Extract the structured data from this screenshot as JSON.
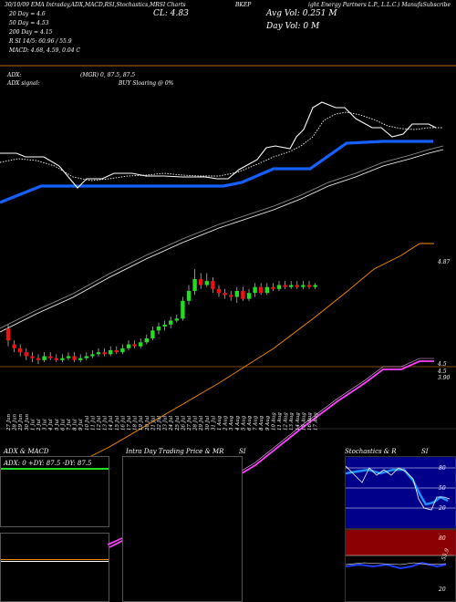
{
  "header": {
    "left_title": "30/10/09 EMA Intraday,ADX,MACD,RSI,Stochastics,MRSI Charts",
    "symbol": "BKEP",
    "right_title": "ight Energy Partners L.P., L.L.C.) ManufaSubscribe",
    "ma20": "20 Day = 4.6",
    "ma50": "50 Day = 4.53",
    "ma200": "200 Day = 4.15",
    "rsi_line": "R                    SI 14/5: 60.96 / 55.9",
    "macd_line": "MACD: 4.68, 4.59, 0.04  C",
    "cl": "CL: 4.83",
    "avg_vol": "Avg Vol: 0.251  M",
    "day_vol": "Day Vol: 0   M"
  },
  "adx_strip": {
    "adx": "ADX:",
    "mgr": "(MGR) 0, 87.5, 87.5",
    "signal": "ADX  signal:",
    "buy": "BUY Sloaring @ 0%"
  },
  "price_axis": {
    "label_top": "4.87",
    "label_mid1": "4.5",
    "label_mid2": "4.5",
    "label_low": "3.90"
  },
  "panels": {
    "adx_title": "ADX  & MACD",
    "adx_values": "ADX: 0   +DY: 87.5  -DY: 87.5",
    "intra_title": "Intra  Day Trading Price  & MR",
    "intra_si": "SI",
    "stoch_title": "Stochastics & R",
    "stoch_si": "SI",
    "stoch_ticks": [
      "80",
      "50",
      "20"
    ],
    "rsi_ticks": [
      "80",
      "50",
      "20"
    ],
    "rsi_mid": "55.9"
  },
  "colors": {
    "background": "#000000",
    "blue": "#1560ff",
    "orange": "#ff8c00",
    "magenta": "#ff40ff",
    "up": "#22dd22",
    "down": "#ee1111",
    "panel_red": "#8b0000",
    "panel_blue": "#00008b"
  },
  "chart_data": {
    "type": "candlestick",
    "categories": [
      "27 Jun",
      "28 Jun",
      "29 Jun",
      "30 Jun",
      "1 Jul",
      "2 Jul",
      "3 Jul",
      "4 Jul",
      "5 Jul",
      "6 Jul",
      "7 Jul",
      "8 Jul",
      "9 Jul",
      "10 Jul",
      "11 Jul",
      "12 Jul",
      "13 Jul",
      "14 Jul",
      "15 Jul",
      "16 Jul",
      "17 Jul",
      "18 Jul",
      "19 Jul",
      "20 Jul",
      "21 Jul",
      "22 Jul",
      "23 Jul",
      "24 Jul",
      "25 Jul",
      "26 Jul",
      "27 Jul",
      "28 Jul",
      "29 Jul",
      "30 Jul",
      "31 Jul",
      "1 Aug",
      "2 Aug",
      "3 Aug",
      "4 Aug",
      "5 Aug",
      "6 Aug",
      "7 Aug",
      "8 Aug",
      "9 Aug",
      "10 Aug",
      "11 Aug",
      "12 Aug",
      "13 Aug",
      "14 Aug",
      "15 Aug",
      "16 Aug",
      "17 Aug"
    ],
    "candles": [
      {
        "o": 4.58,
        "c": 4.52,
        "h": 4.6,
        "l": 4.49
      },
      {
        "o": 4.5,
        "c": 4.48,
        "h": 4.52,
        "l": 4.46
      },
      {
        "o": 4.48,
        "c": 4.46,
        "h": 4.5,
        "l": 4.44
      },
      {
        "o": 4.46,
        "c": 4.44,
        "h": 4.48,
        "l": 4.42
      },
      {
        "o": 4.44,
        "c": 4.43,
        "h": 4.46,
        "l": 4.41
      },
      {
        "o": 4.43,
        "c": 4.42,
        "h": 4.45,
        "l": 4.4
      },
      {
        "o": 4.42,
        "c": 4.44,
        "h": 4.46,
        "l": 4.41
      },
      {
        "o": 4.44,
        "c": 4.43,
        "h": 4.46,
        "l": 4.42
      },
      {
        "o": 4.43,
        "c": 4.42,
        "h": 4.45,
        "l": 4.41
      },
      {
        "o": 4.42,
        "c": 4.43,
        "h": 4.45,
        "l": 4.41
      },
      {
        "o": 4.43,
        "c": 4.44,
        "h": 4.46,
        "l": 4.42
      },
      {
        "o": 4.44,
        "c": 4.42,
        "h": 4.46,
        "l": 4.41
      },
      {
        "o": 4.42,
        "c": 4.43,
        "h": 4.45,
        "l": 4.41
      },
      {
        "o": 4.43,
        "c": 4.44,
        "h": 4.46,
        "l": 4.42
      },
      {
        "o": 4.44,
        "c": 4.45,
        "h": 4.47,
        "l": 4.43
      },
      {
        "o": 4.45,
        "c": 4.46,
        "h": 4.48,
        "l": 4.44
      },
      {
        "o": 4.46,
        "c": 4.45,
        "h": 4.48,
        "l": 4.44
      },
      {
        "o": 4.45,
        "c": 4.47,
        "h": 4.49,
        "l": 4.44
      },
      {
        "o": 4.47,
        "c": 4.46,
        "h": 4.49,
        "l": 4.45
      },
      {
        "o": 4.46,
        "c": 4.48,
        "h": 4.5,
        "l": 4.45
      },
      {
        "o": 4.48,
        "c": 4.5,
        "h": 4.52,
        "l": 4.47
      },
      {
        "o": 4.5,
        "c": 4.49,
        "h": 4.52,
        "l": 4.48
      },
      {
        "o": 4.49,
        "c": 4.51,
        "h": 4.53,
        "l": 4.48
      },
      {
        "o": 4.51,
        "c": 4.53,
        "h": 4.55,
        "l": 4.5
      },
      {
        "o": 4.53,
        "c": 4.57,
        "h": 4.59,
        "l": 4.52
      },
      {
        "o": 4.57,
        "c": 4.59,
        "h": 4.61,
        "l": 4.55
      },
      {
        "o": 4.59,
        "c": 4.6,
        "h": 4.62,
        "l": 4.57
      },
      {
        "o": 4.6,
        "c": 4.62,
        "h": 4.64,
        "l": 4.58
      },
      {
        "o": 4.62,
        "c": 4.63,
        "h": 4.65,
        "l": 4.61
      },
      {
        "o": 4.63,
        "c": 4.72,
        "h": 4.74,
        "l": 4.62
      },
      {
        "o": 4.72,
        "c": 4.77,
        "h": 4.8,
        "l": 4.7
      },
      {
        "o": 4.77,
        "c": 4.83,
        "h": 4.88,
        "l": 4.75
      },
      {
        "o": 4.83,
        "c": 4.8,
        "h": 4.86,
        "l": 4.78
      },
      {
        "o": 4.8,
        "c": 4.82,
        "h": 4.86,
        "l": 4.79
      },
      {
        "o": 4.82,
        "c": 4.78,
        "h": 4.84,
        "l": 4.76
      },
      {
        "o": 4.78,
        "c": 4.76,
        "h": 4.8,
        "l": 4.74
      },
      {
        "o": 4.76,
        "c": 4.75,
        "h": 4.78,
        "l": 4.73
      },
      {
        "o": 4.75,
        "c": 4.74,
        "h": 4.77,
        "l": 4.72
      },
      {
        "o": 4.74,
        "c": 4.77,
        "h": 4.79,
        "l": 4.71
      },
      {
        "o": 4.77,
        "c": 4.73,
        "h": 4.79,
        "l": 4.72
      },
      {
        "o": 4.73,
        "c": 4.76,
        "h": 4.78,
        "l": 4.72
      },
      {
        "o": 4.76,
        "c": 4.79,
        "h": 4.81,
        "l": 4.74
      },
      {
        "o": 4.79,
        "c": 4.76,
        "h": 4.81,
        "l": 4.75
      },
      {
        "o": 4.76,
        "c": 4.79,
        "h": 4.81,
        "l": 4.75
      },
      {
        "o": 4.79,
        "c": 4.78,
        "h": 4.81,
        "l": 4.77
      },
      {
        "o": 4.78,
        "c": 4.8,
        "h": 4.82,
        "l": 4.77
      },
      {
        "o": 4.8,
        "c": 4.79,
        "h": 4.82,
        "l": 4.78
      },
      {
        "o": 4.79,
        "c": 4.8,
        "h": 4.82,
        "l": 4.78
      },
      {
        "o": 4.8,
        "c": 4.79,
        "h": 4.82,
        "l": 4.78
      },
      {
        "o": 4.79,
        "c": 4.8,
        "h": 4.82,
        "l": 4.78
      },
      {
        "o": 4.8,
        "c": 4.79,
        "h": 4.82,
        "l": 4.78
      },
      {
        "o": 4.79,
        "c": 4.8,
        "h": 4.81,
        "l": 4.78
      }
    ],
    "ylim": [
      4.35,
      4.95
    ]
  }
}
